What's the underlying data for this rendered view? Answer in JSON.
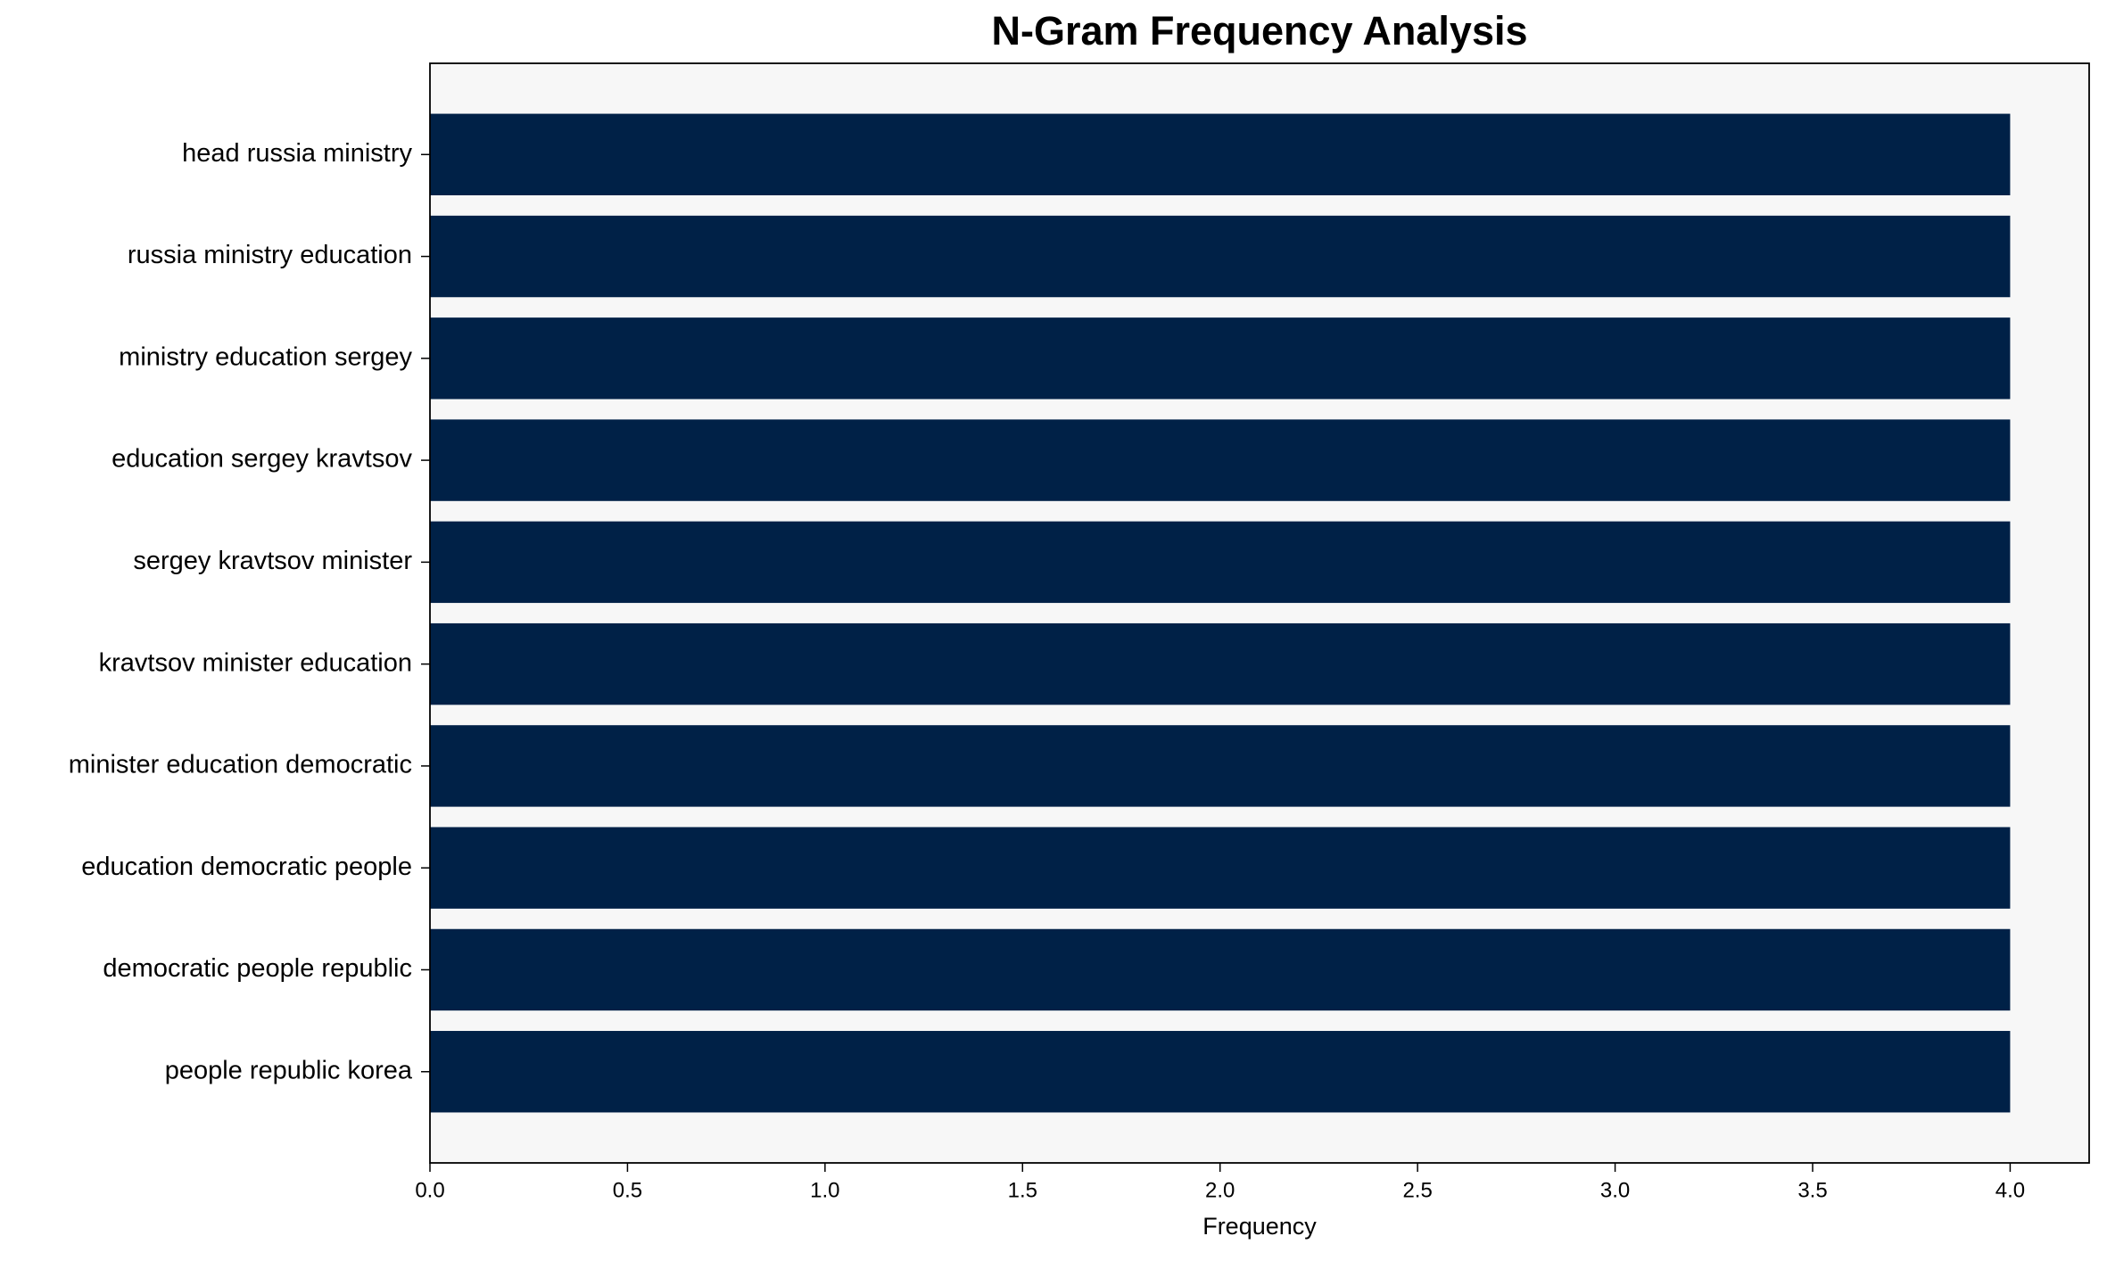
{
  "chart_data": {
    "type": "barh",
    "title": "N-Gram Frequency Analysis",
    "xlabel": "Frequency",
    "categories": [
      "head russia ministry",
      "russia ministry education",
      "ministry education sergey",
      "education sergey kravtsov",
      "sergey kravtsov minister",
      "kravtsov minister education",
      "minister education democratic",
      "education democratic people",
      "democratic people republic",
      "people republic korea"
    ],
    "values": [
      4,
      4,
      4,
      4,
      4,
      4,
      4,
      4,
      4,
      4
    ],
    "color": "#002147",
    "xlim": [
      0,
      4.2
    ],
    "xticks": [
      {
        "value": 0,
        "label": "0.0"
      },
      {
        "value": 0.5,
        "label": "0.5"
      },
      {
        "value": 1,
        "label": "1.0"
      },
      {
        "value": 1.5,
        "label": "1.5"
      },
      {
        "value": 2,
        "label": "2.0"
      },
      {
        "value": 2.5,
        "label": "2.5"
      },
      {
        "value": 3,
        "label": "3.0"
      },
      {
        "value": 3.5,
        "label": "3.5"
      },
      {
        "value": 4,
        "label": "4.0"
      }
    ]
  }
}
